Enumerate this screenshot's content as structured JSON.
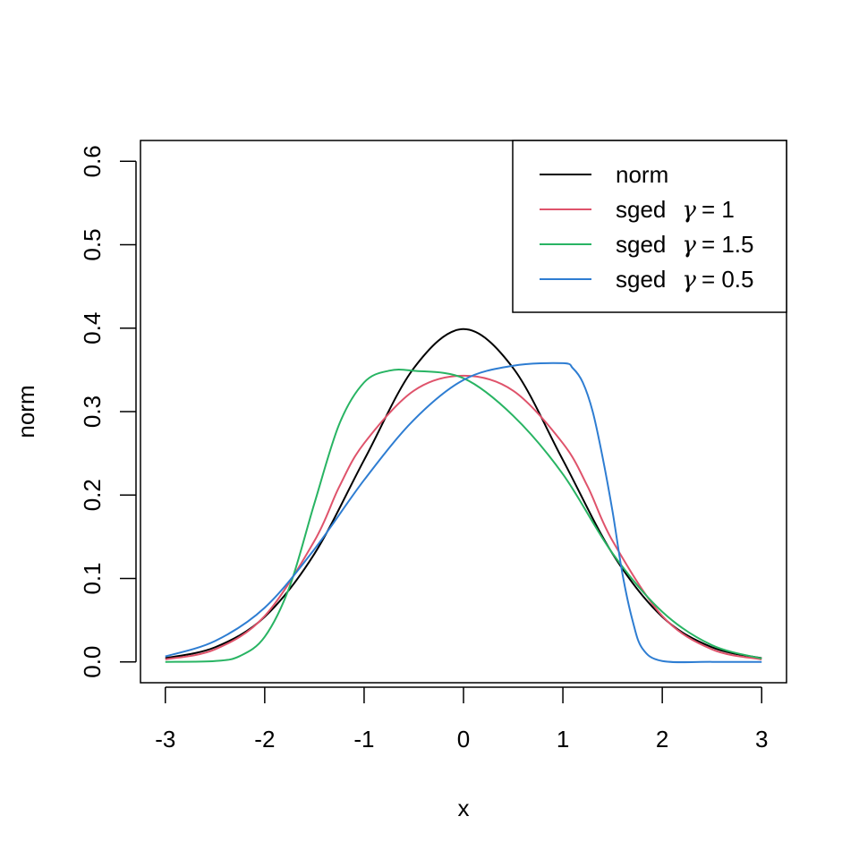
{
  "chart_data": {
    "type": "line",
    "title": "",
    "xlabel": "x",
    "ylabel": "norm",
    "xlim": [
      -3.25,
      3.25
    ],
    "ylim": [
      -0.025,
      0.625
    ],
    "x_ticks": [
      -3,
      -2,
      -1,
      0,
      1,
      2,
      3
    ],
    "x_tick_labels": [
      "-3",
      "-2",
      "-1",
      "0",
      "1",
      "2",
      "3"
    ],
    "y_ticks": [
      0.0,
      0.1,
      0.2,
      0.3,
      0.4,
      0.5,
      0.6
    ],
    "y_tick_labels": [
      "0.0",
      "0.1",
      "0.2",
      "0.3",
      "0.4",
      "0.5",
      "0.6"
    ],
    "grid": false,
    "legend_position": "top-right",
    "series": [
      {
        "name": "norm",
        "legend_label": "norm",
        "color": "#000000",
        "x": [
          -3.0,
          -2.5,
          -2.0,
          -1.5,
          -1.0,
          -0.5,
          0.0,
          0.5,
          1.0,
          1.5,
          2.0,
          2.5,
          3.0
        ],
        "y": [
          0.0044,
          0.0175,
          0.054,
          0.1295,
          0.242,
          0.3521,
          0.3989,
          0.3521,
          0.242,
          0.1295,
          0.054,
          0.0175,
          0.0044
        ]
      },
      {
        "name": "sged gamma=1",
        "legend_label": "sged",
        "legend_param": "γ = 1",
        "color": "#DF536B",
        "x": [
          -3.0,
          -2.5,
          -2.0,
          -1.5,
          -1.25,
          -1.0,
          -0.5,
          0.0,
          0.5,
          1.0,
          1.25,
          1.5,
          2.0,
          2.5,
          3.0
        ],
        "y": [
          0.003,
          0.015,
          0.055,
          0.145,
          0.21,
          0.262,
          0.325,
          0.343,
          0.325,
          0.262,
          0.21,
          0.145,
          0.055,
          0.015,
          0.003
        ]
      },
      {
        "name": "sged gamma=1.5",
        "legend_label": "sged",
        "legend_param": "γ = 1.5",
        "color": "#28B463",
        "x": [
          -3.0,
          -2.5,
          -2.25,
          -2.0,
          -1.75,
          -1.5,
          -1.25,
          -1.0,
          -0.75,
          -0.5,
          0.0,
          0.5,
          1.0,
          1.5,
          2.0,
          2.5,
          3.0
        ],
        "y": [
          0.0,
          0.001,
          0.007,
          0.03,
          0.09,
          0.19,
          0.285,
          0.335,
          0.349,
          0.349,
          0.34,
          0.295,
          0.225,
          0.13,
          0.06,
          0.02,
          0.004
        ]
      },
      {
        "name": "sged gamma=0.5",
        "legend_label": "sged",
        "legend_param": "γ = 0.5",
        "color": "#2E7DD2",
        "x": [
          -3.0,
          -2.5,
          -2.0,
          -1.5,
          -1.0,
          -0.5,
          0.0,
          0.5,
          1.0,
          1.1,
          1.2,
          1.3,
          1.4,
          1.5,
          1.6,
          1.7,
          1.8,
          2.0,
          2.5,
          3.0
        ],
        "y": [
          0.0065,
          0.025,
          0.065,
          0.135,
          0.218,
          0.29,
          0.338,
          0.355,
          0.358,
          0.352,
          0.335,
          0.3,
          0.245,
          0.18,
          0.105,
          0.05,
          0.016,
          0.001,
          0.0,
          0.0
        ]
      }
    ]
  }
}
